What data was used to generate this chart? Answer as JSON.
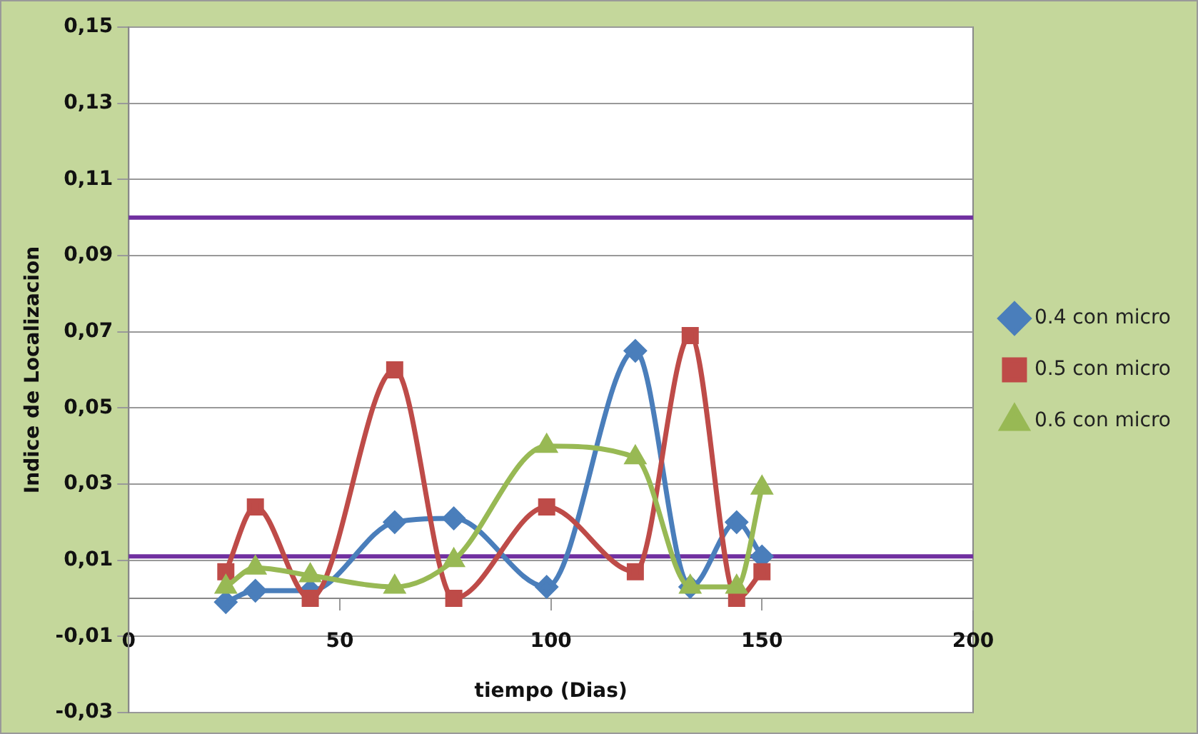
{
  "chart_data": {
    "type": "line",
    "xlabel": "tiempo (Dias)",
    "ylabel": "Indice de Localizacion",
    "xlim": [
      0,
      200
    ],
    "xticks": [
      0,
      50,
      100,
      150,
      200
    ],
    "ylim": [
      -0.03,
      0.15
    ],
    "yticks": [
      {
        "value": -0.03,
        "label": "-0,03"
      },
      {
        "value": -0.01,
        "label": "-0,01"
      },
      {
        "value": 0.01,
        "label": "0,01"
      },
      {
        "value": 0.03,
        "label": "0,03"
      },
      {
        "value": 0.05,
        "label": "0,05"
      },
      {
        "value": 0.07,
        "label": "0,07"
      },
      {
        "value": 0.09,
        "label": "0,09"
      },
      {
        "value": 0.11,
        "label": "0,11"
      },
      {
        "value": 0.13,
        "label": "0,13"
      },
      {
        "value": 0.15,
        "label": "0,15"
      }
    ],
    "grid": "y",
    "legend": "right",
    "x": [
      23,
      30,
      43,
      63,
      77,
      99,
      120,
      133,
      144,
      150
    ],
    "series": [
      {
        "name": "0.4 con micro",
        "color": "#4a7ebb",
        "marker": "diamond",
        "values": [
          -0.001,
          0.002,
          0.002,
          0.02,
          0.021,
          0.003,
          0.065,
          0.003,
          0.02,
          0.011
        ]
      },
      {
        "name": "0.5 con micro",
        "color": "#be4b48",
        "marker": "square",
        "values": [
          0.007,
          0.024,
          0,
          0.06,
          0,
          0.024,
          0.007,
          0.069,
          0,
          0.007
        ]
      },
      {
        "name": "0.6 con micro",
        "color": "#98b954",
        "marker": "triangle",
        "values": [
          0.003,
          0.008,
          0.006,
          0.003,
          0.01,
          0.04,
          0.037,
          0.003,
          0.003,
          0.029
        ]
      }
    ],
    "ref_lines": [
      {
        "axis": "y",
        "value": 0.1,
        "color": "#7030a0"
      },
      {
        "axis": "y",
        "value": 0.011,
        "color": "#7030a0"
      }
    ]
  }
}
